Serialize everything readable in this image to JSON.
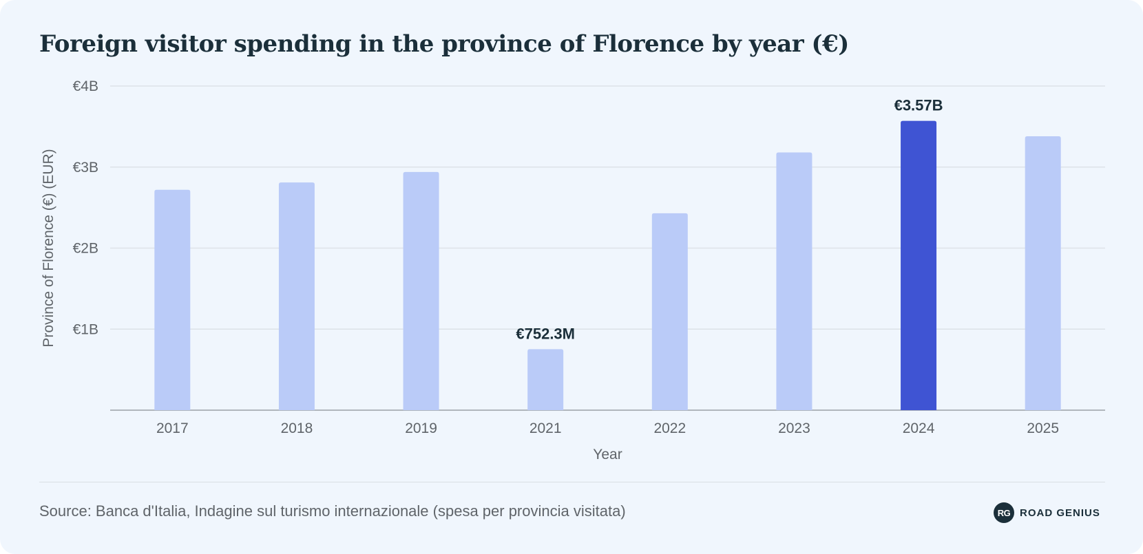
{
  "title": "Foreign visitor spending in the province of Florence by year (€)",
  "source": "Source: Banca d'Italia, Indagine sul turismo internazionale (spesa per provincia visitata)",
  "brand": {
    "mark": "RG",
    "name": "ROAD GENIUS"
  },
  "colors": {
    "bar": "#bacbf8",
    "highlight": "#3f54d3",
    "grid": "#dde2e8",
    "axis": "#9aa0a6",
    "background": "#f0f6fd"
  },
  "chart_data": {
    "type": "bar",
    "xlabel": "Year",
    "ylabel": "Province of Florence (€) (EUR)",
    "categories": [
      "2017",
      "2018",
      "2019",
      "2021",
      "2022",
      "2023",
      "2024",
      "2025"
    ],
    "values": [
      2.72,
      2.81,
      2.94,
      0.7523,
      2.43,
      3.18,
      3.57,
      3.38
    ],
    "unit": "billion EUR",
    "ylim": [
      0,
      4
    ],
    "yticks": [
      {
        "value": 1,
        "label": "€1B"
      },
      {
        "value": 2,
        "label": "€2B"
      },
      {
        "value": 3,
        "label": "€3B"
      },
      {
        "value": 4,
        "label": "€4B"
      }
    ],
    "highlight": "2024",
    "data_labels": [
      {
        "category": "2021",
        "text": "€752.3M"
      },
      {
        "category": "2024",
        "text": "€3.57B"
      }
    ],
    "grid": true,
    "legend": "none"
  }
}
